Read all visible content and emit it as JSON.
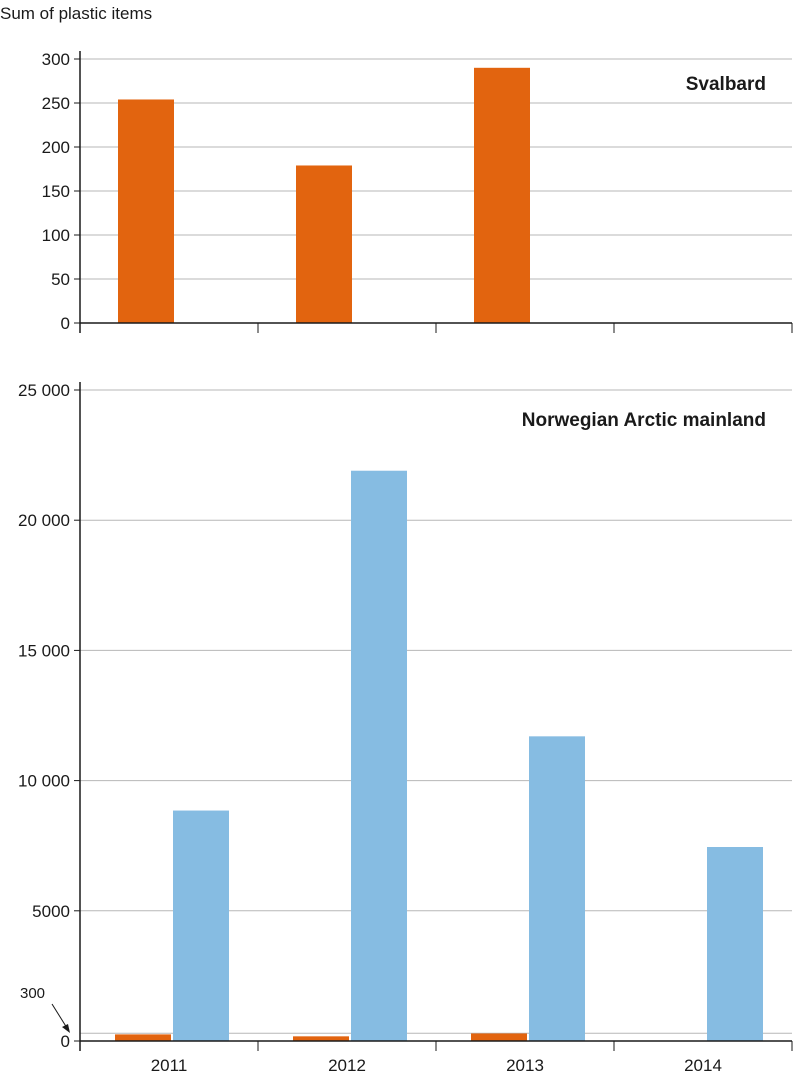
{
  "chart_data": [
    {
      "type": "bar",
      "title": "Svalbard",
      "ylabel": "Sum of plastic items",
      "categories": [
        "2011",
        "2012",
        "2013",
        "2014"
      ],
      "ylim": [
        0,
        300
      ],
      "yticks": [
        "0",
        "50",
        "100",
        "150",
        "200",
        "250",
        "300"
      ],
      "grid": true,
      "series": [
        {
          "values": [
            254,
            179,
            290,
            0
          ],
          "color": "#e2640f"
        }
      ]
    },
    {
      "type": "bar",
      "title": "Norwegian Arctic mainland",
      "categories": [
        "2011",
        "2012",
        "2013",
        "2014"
      ],
      "ylim": [
        0,
        25000
      ],
      "yticks": [
        "0",
        "5000",
        "10 000",
        "15 000",
        "20 000",
        "25 000"
      ],
      "grid": true,
      "annotation": {
        "label": "300",
        "value": 300
      },
      "series": [
        {
          "values": [
            254,
            179,
            290,
            0
          ],
          "color": "#e2640f"
        },
        {
          "values": [
            8850,
            21900,
            11700,
            7450
          ],
          "color": "#86bce2"
        }
      ]
    }
  ],
  "colors": {
    "grid": "#b7b7b7",
    "axis": "#1a1a1a"
  }
}
